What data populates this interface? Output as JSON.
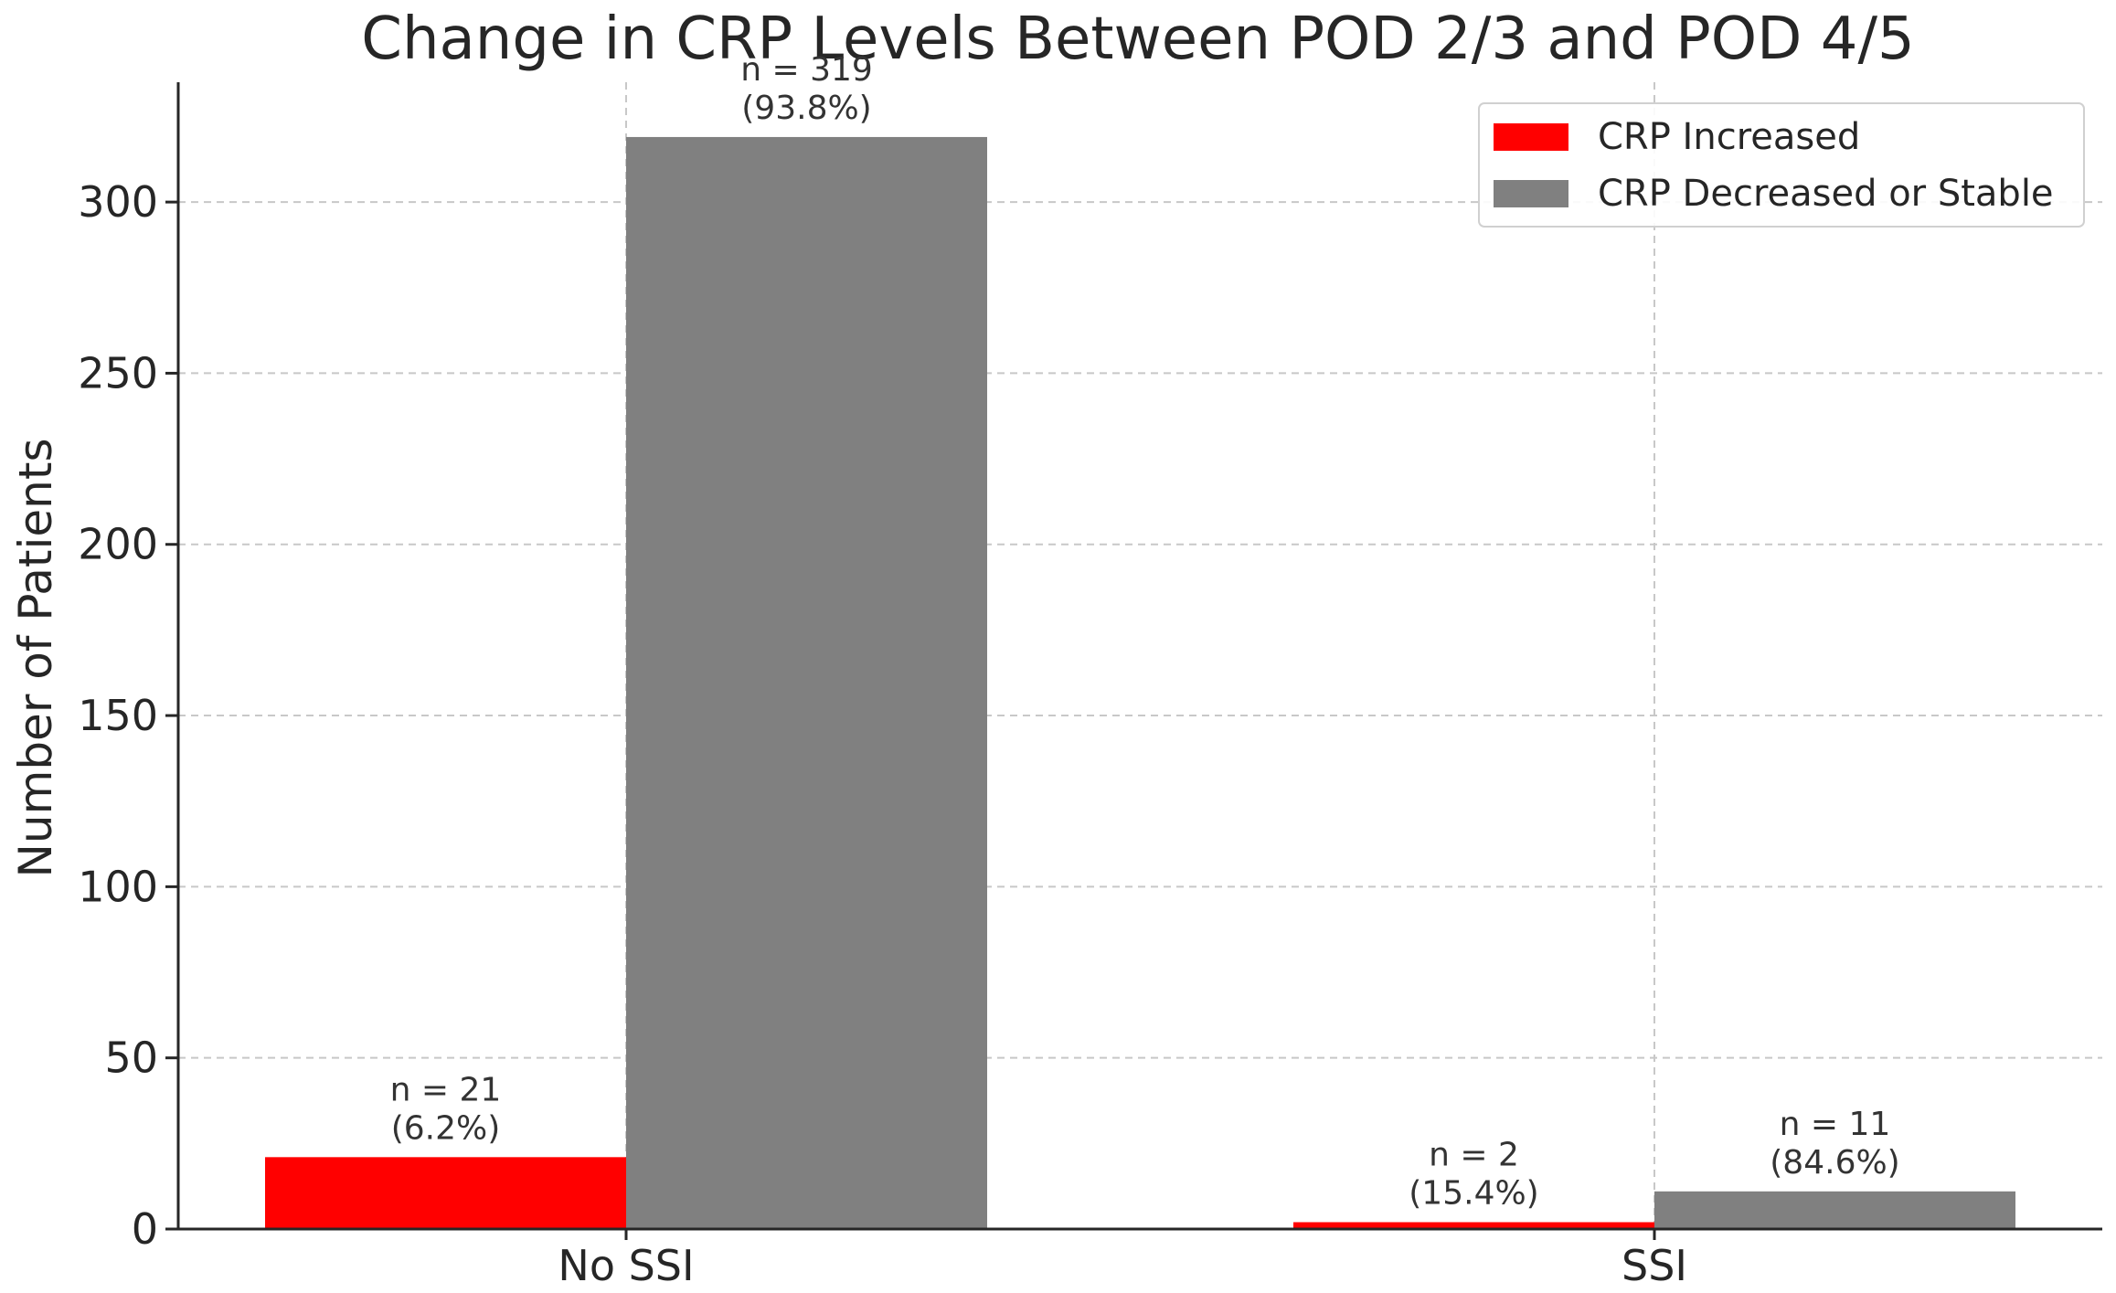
{
  "chart_data": {
    "type": "bar",
    "title": "Change in CRP Levels Between POD 2/3 and POD 4/5",
    "xlabel": "",
    "ylabel": "Number of Patients",
    "categories": [
      "No SSI",
      "SSI"
    ],
    "series": [
      {
        "name": "CRP Increased",
        "color": "#ff0000",
        "values": [
          21,
          2
        ],
        "labels": [
          [
            "n = 21",
            "(6.2%)"
          ],
          [
            "n = 2",
            "(15.4%)"
          ]
        ]
      },
      {
        "name": "CRP Decreased or Stable",
        "color": "#808080",
        "values": [
          319,
          11
        ],
        "labels": [
          [
            "n = 319",
            "(93.8%)"
          ],
          [
            "n = 11",
            "(84.6%)"
          ]
        ]
      }
    ],
    "ylim": [
      0,
      335
    ],
    "yticks": [
      0,
      50,
      100,
      150,
      200,
      250,
      300
    ],
    "grid": true,
    "legend_position": "top-right"
  }
}
